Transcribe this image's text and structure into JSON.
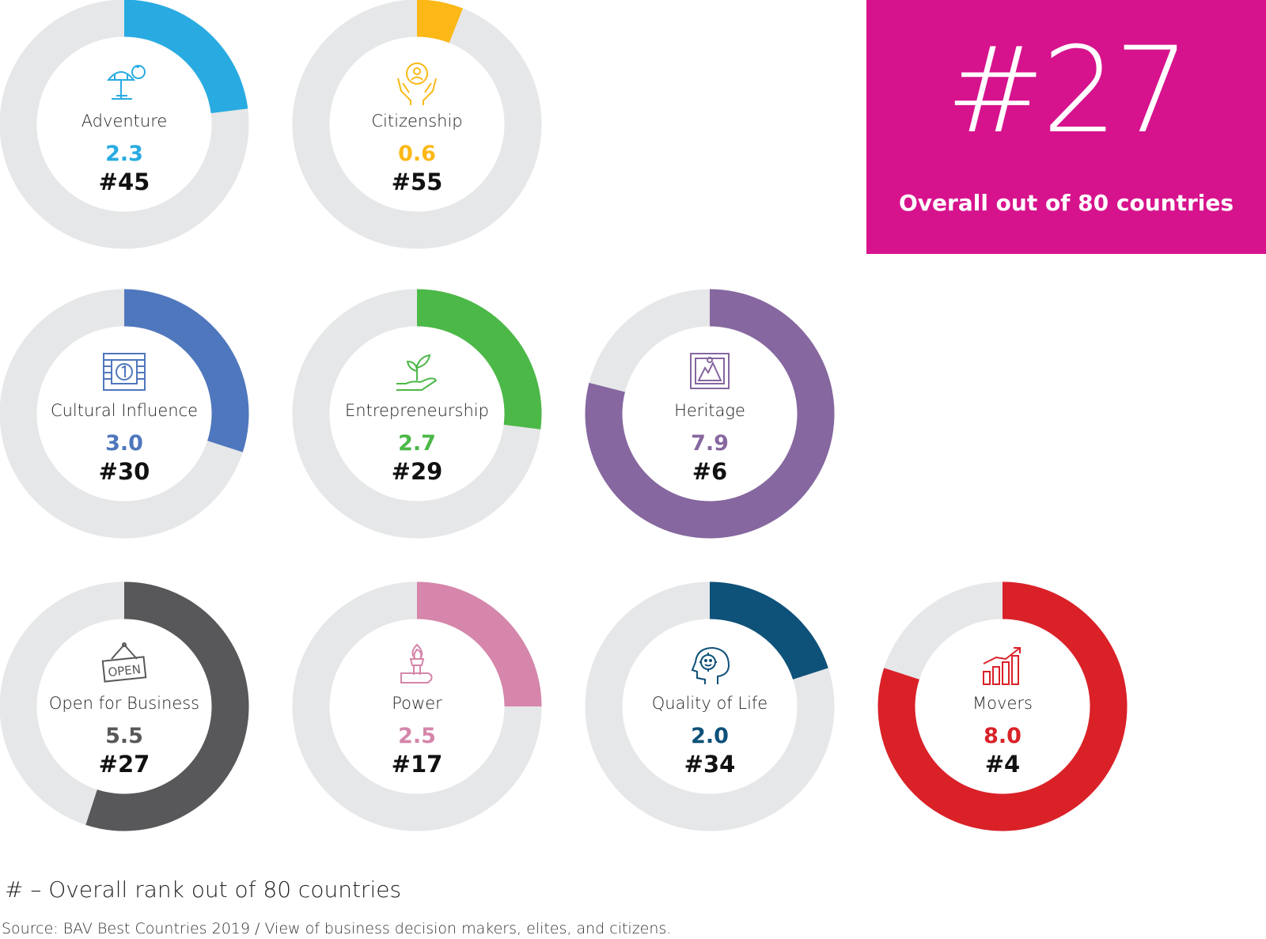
{
  "overall": {
    "rank": "#27",
    "label": "Overall out of 80 countries"
  },
  "footnote": "# – Overall rank out of 80 countries",
  "source": "Source: BAV Best Countries 2019 / View of business decision makers, elites, and citizens.",
  "colors": {
    "track": "#e6e7e8",
    "overall_box": "#d6138d"
  },
  "chart_data": {
    "type": "donut",
    "scale": [
      0,
      10
    ],
    "items": [
      {
        "name": "Adventure",
        "score": 2.3,
        "score_label": "2.3",
        "rank": "#45",
        "color": "#29abe2",
        "icon": "beach-umbrella-icon"
      },
      {
        "name": "Citizenship",
        "score": 0.6,
        "score_label": "0.6",
        "rank": "#55",
        "color": "#fbb817",
        "icon": "hands-person-icon"
      },
      {
        "name": "Cultural Influence",
        "score": 3.0,
        "score_label": "3.0",
        "rank": "#30",
        "color": "#4f77bd",
        "icon": "film-frame-icon"
      },
      {
        "name": "Entrepreneurship",
        "score": 2.7,
        "score_label": "2.7",
        "rank": "#29",
        "color": "#4cb848",
        "icon": "hand-sprout-icon"
      },
      {
        "name": "Heritage",
        "score": 7.9,
        "score_label": "7.9",
        "rank": "#6",
        "color": "#86679f",
        "icon": "monument-frame-icon"
      },
      {
        "name": "Open for Business",
        "score": 5.5,
        "score_label": "5.5",
        "rank": "#27",
        "color": "#58585a",
        "icon": "open-sign-icon"
      },
      {
        "name": "Power",
        "score": 2.5,
        "score_label": "2.5",
        "rank": "#17",
        "color": "#d586aa",
        "icon": "torch-hand-icon"
      },
      {
        "name": "Quality of Life",
        "score": 2.0,
        "score_label": "2.0",
        "rank": "#34",
        "color": "#0e5179",
        "icon": "smiling-head-icon"
      },
      {
        "name": "Movers",
        "score": 8.0,
        "score_label": "8.0",
        "rank": "#4",
        "color": "#da2128",
        "icon": "rising-bar-chart-icon"
      }
    ]
  }
}
